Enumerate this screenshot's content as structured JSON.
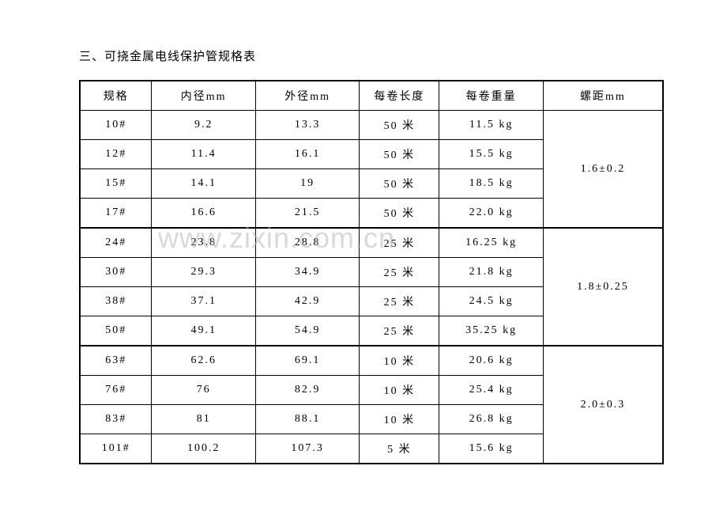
{
  "title": "三、可挠金属电线保护管规格表",
  "headers": {
    "spec": "规格",
    "inner": "内径mm",
    "outer": "外径mm",
    "length": "每卷长度",
    "weight": "每卷重量",
    "pitch": "螺距mm"
  },
  "rows": [
    {
      "spec": "10#",
      "inner": "9.2",
      "outer": "13.3",
      "length": "50 米",
      "weight": "11.5 kg"
    },
    {
      "spec": "12#",
      "inner": "11.4",
      "outer": "16.1",
      "length": "50 米",
      "weight": "15.5 kg"
    },
    {
      "spec": "15#",
      "inner": "14.1",
      "outer": "19",
      "length": "50 米",
      "weight": "18.5 kg"
    },
    {
      "spec": "17#",
      "inner": "16.6",
      "outer": "21.5",
      "length": "50 米",
      "weight": "22.0 kg"
    },
    {
      "spec": "24#",
      "inner": "23.8",
      "outer": "28.8",
      "length": "25 米",
      "weight": "16.25 kg"
    },
    {
      "spec": "30#",
      "inner": "29.3",
      "outer": "34.9",
      "length": "25 米",
      "weight": "21.8 kg"
    },
    {
      "spec": "38#",
      "inner": "37.1",
      "outer": "42.9",
      "length": "25 米",
      "weight": "24.5 kg"
    },
    {
      "spec": "50#",
      "inner": "49.1",
      "outer": "54.9",
      "length": "25 米",
      "weight": "35.25 kg"
    },
    {
      "spec": "63#",
      "inner": "62.6",
      "outer": "69.1",
      "length": "10 米",
      "weight": "20.6 kg"
    },
    {
      "spec": "76#",
      "inner": "76",
      "outer": "82.9",
      "length": "10 米",
      "weight": "25.4 kg"
    },
    {
      "spec": "83#",
      "inner": "81",
      "outer": "88.1",
      "length": "10 米",
      "weight": "26.8 kg"
    },
    {
      "spec": "101#",
      "inner": "100.2",
      "outer": "107.3",
      "length": "5 米",
      "weight": "15.6 kg"
    }
  ],
  "pitches": [
    "1.6±0.2",
    "1.8±0.25",
    "2.0±0.3"
  ],
  "watermark": "www.zixin.com.cn"
}
